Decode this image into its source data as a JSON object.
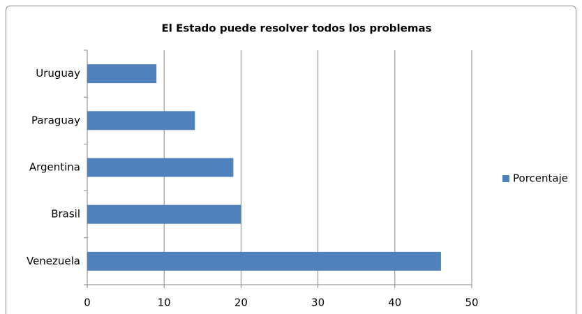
{
  "chart_data": {
    "type": "hbar",
    "title": "El Estado puede resolver todos los problemas",
    "categories": [
      "Uruguay",
      "Paraguay",
      "Argentina",
      "Brasil",
      "Venezuela"
    ],
    "series": [
      {
        "name": "Porcentaje",
        "color": "#4f81bd",
        "values": [
          9,
          14,
          19,
          20,
          46
        ]
      }
    ],
    "xlim": [
      0,
      50
    ],
    "xticks": [
      0,
      10,
      20,
      30,
      40,
      50
    ],
    "grid": true,
    "legend": "right"
  }
}
